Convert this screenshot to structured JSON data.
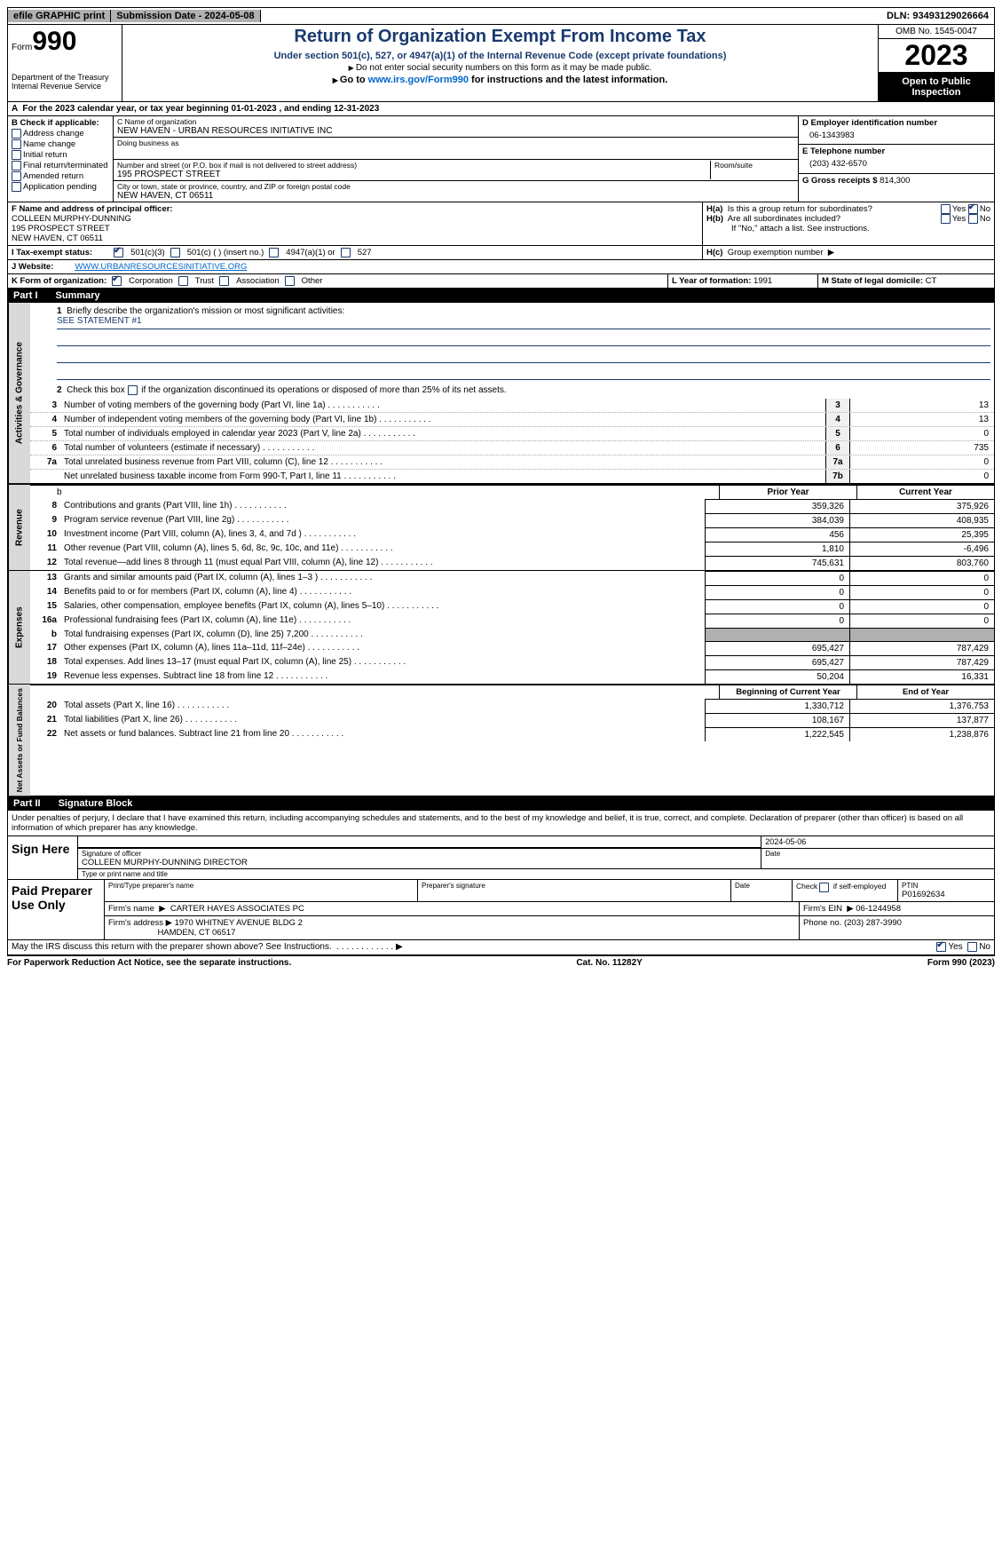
{
  "topbar": {
    "efile": "efile GRAPHIC print",
    "submission": "Submission Date - 2024-05-08",
    "dln": "DLN: 93493129026664"
  },
  "header": {
    "form_label": "Form",
    "form_number": "990",
    "dept": "Department of the Treasury",
    "irs": "Internal Revenue Service",
    "title": "Return of Organization Exempt From Income Tax",
    "subtitle": "Under section 501(c), 527, or 4947(a)(1) of the Internal Revenue Code (except private foundations)",
    "note_ssn": "Do not enter social security numbers on this form as it may be made public.",
    "goto": "Go to www.irs.gov/Form990 for instructions and the latest information.",
    "goto_url": "www.irs.gov/Form990",
    "omb": "OMB No. 1545-0047",
    "year": "2023",
    "inspect": "Open to Public Inspection"
  },
  "line_a": "For the 2023 calendar year, or tax year beginning 01-01-2023    , and ending 12-31-2023",
  "box_b": {
    "label": "B Check if applicable:",
    "opts": [
      "Address change",
      "Name change",
      "Initial return",
      "Final return/terminated",
      "Amended return",
      "Application pending"
    ]
  },
  "box_c": {
    "name_label": "C Name of organization",
    "name": "NEW HAVEN - URBAN RESOURCES INITIATIVE INC",
    "dba_label": "Doing business as",
    "street_label": "Number and street (or P.O. box if mail is not delivered to street address)",
    "room_label": "Room/suite",
    "street": "195 PROSPECT STREET",
    "city_label": "City or town, state or province, country, and ZIP or foreign postal code",
    "city": "NEW HAVEN, CT  06511"
  },
  "box_d": {
    "label": "D Employer identification number",
    "value": "06-1343983"
  },
  "box_e": {
    "label": "E Telephone number",
    "value": "(203) 432-6570"
  },
  "box_g": {
    "label": "G Gross receipts $",
    "value": "814,300"
  },
  "box_f": {
    "label": "F  Name and address of principal officer:",
    "name": "COLLEEN MURPHY-DUNNING",
    "street": "195 PROSPECT STREET",
    "city": "NEW HAVEN, CT  06511"
  },
  "box_h": {
    "ha_label": "H(a)  Is this a group return for subordinates?",
    "ha_yes": "Yes",
    "ha_no": "No",
    "hb_label": "H(b)  Are all subordinates included?",
    "hb_note": "If \"No,\" attach a list. See instructions.",
    "hc_label": "H(c)  Group exemption number"
  },
  "box_i": {
    "label": "I   Tax-exempt status:",
    "opts": [
      "501(c)(3)",
      "501(c) (  ) (insert no.)",
      "4947(a)(1) or",
      "527"
    ]
  },
  "box_j": {
    "label": "J   Website:",
    "value": "WWW.URBANRESOURCESINITIATIVE.ORG"
  },
  "box_k": {
    "label": "K Form of organization:",
    "opts": [
      "Corporation",
      "Trust",
      "Association",
      "Other"
    ],
    "l_label": "L Year of formation:",
    "l_val": "1991",
    "m_label": "M State of legal domicile:",
    "m_val": "CT"
  },
  "part1": {
    "tag": "Part I",
    "title": "Summary",
    "q1_label": "Briefly describe the organization's mission or most significant activities:",
    "q1_val": "SEE STATEMENT #1",
    "q2_label": "Check this box        if the organization discontinued its operations or disposed of more than 25% of its net assets.",
    "gov_side": "Activities & Governance",
    "rev_side": "Revenue",
    "exp_side": "Expenses",
    "na_side": "Net Assets or Fund Balances",
    "lines_gov": [
      {
        "n": "3",
        "d": "Number of voting members of the governing body (Part VI, line 1a)",
        "box": "3",
        "v": "13"
      },
      {
        "n": "4",
        "d": "Number of independent voting members of the governing body (Part VI, line 1b)",
        "box": "4",
        "v": "13"
      },
      {
        "n": "5",
        "d": "Total number of individuals employed in calendar year 2023 (Part V, line 2a)",
        "box": "5",
        "v": "0"
      },
      {
        "n": "6",
        "d": "Total number of volunteers (estimate if necessary)",
        "box": "6",
        "v": "735"
      },
      {
        "n": "7a",
        "d": "Total unrelated business revenue from Part VIII, column (C), line 12",
        "box": "7a",
        "v": "0"
      },
      {
        "n": "",
        "d": "Net unrelated business taxable income from Form 990-T, Part I, line 11",
        "box": "7b",
        "v": "0"
      }
    ],
    "prior_label": "Prior Year",
    "current_label": "Current Year",
    "lines_rev": [
      {
        "n": "8",
        "d": "Contributions and grants (Part VIII, line 1h)",
        "p": "359,326",
        "c": "375,926"
      },
      {
        "n": "9",
        "d": "Program service revenue (Part VIII, line 2g)",
        "p": "384,039",
        "c": "408,935"
      },
      {
        "n": "10",
        "d": "Investment income (Part VIII, column (A), lines 3, 4, and 7d )",
        "p": "456",
        "c": "25,395"
      },
      {
        "n": "11",
        "d": "Other revenue (Part VIII, column (A), lines 5, 6d, 8c, 9c, 10c, and 11e)",
        "p": "1,810",
        "c": "-6,496"
      },
      {
        "n": "12",
        "d": "Total revenue—add lines 8 through 11 (must equal Part VIII, column (A), line 12)",
        "p": "745,631",
        "c": "803,760"
      }
    ],
    "lines_exp": [
      {
        "n": "13",
        "d": "Grants and similar amounts paid (Part IX, column (A), lines 1–3 )",
        "p": "0",
        "c": "0"
      },
      {
        "n": "14",
        "d": "Benefits paid to or for members (Part IX, column (A), line 4)",
        "p": "0",
        "c": "0"
      },
      {
        "n": "15",
        "d": "Salaries, other compensation, employee benefits (Part IX, column (A), lines 5–10)",
        "p": "0",
        "c": "0"
      },
      {
        "n": "16a",
        "d": "Professional fundraising fees (Part IX, column (A), line 11e)",
        "p": "0",
        "c": "0"
      },
      {
        "n": "b",
        "d": "Total fundraising expenses (Part IX, column (D), line 25) 7,200",
        "p": "",
        "c": "",
        "shade": true
      },
      {
        "n": "17",
        "d": "Other expenses (Part IX, column (A), lines 11a–11d, 11f–24e)",
        "p": "695,427",
        "c": "787,429"
      },
      {
        "n": "18",
        "d": "Total expenses. Add lines 13–17 (must equal Part IX, column (A), line 25)",
        "p": "695,427",
        "c": "787,429"
      },
      {
        "n": "19",
        "d": "Revenue less expenses. Subtract line 18 from line 12",
        "p": "50,204",
        "c": "16,331"
      }
    ],
    "boy_label": "Beginning of Current Year",
    "eoy_label": "End of Year",
    "lines_na": [
      {
        "n": "20",
        "d": "Total assets (Part X, line 16)",
        "p": "1,330,712",
        "c": "1,376,753"
      },
      {
        "n": "21",
        "d": "Total liabilities (Part X, line 26)",
        "p": "108,167",
        "c": "137,877"
      },
      {
        "n": "22",
        "d": "Net assets or fund balances. Subtract line 21 from line 20",
        "p": "1,222,545",
        "c": "1,238,876"
      }
    ]
  },
  "part2": {
    "tag": "Part II",
    "title": "Signature Block",
    "perjury": "Under penalties of perjury, I declare that I have examined this return, including accompanying schedules and statements, and to the best of my knowledge and belief, it is true, correct, and complete. Declaration of preparer (other than officer) is based on all information of which preparer has any knowledge.",
    "sign_here": "Sign Here",
    "sig_officer_label": "Signature of officer",
    "sig_date_label": "Date",
    "sig_date": "2024-05-06",
    "officer_name": "COLLEEN MURPHY-DUNNING  DIRECTOR",
    "type_label": "Type or print name and title",
    "paid": "Paid Preparer Use Only",
    "pt_name_label": "Print/Type preparer's name",
    "prep_sig_label": "Preparer's signature",
    "date_label": "Date",
    "self_emp_label": "Check        if self-employed",
    "ptin_label": "PTIN",
    "ptin": "P01692634",
    "firm_name_label": "Firm's name",
    "firm_name": "CARTER HAYES ASSOCIATES PC",
    "firm_ein_label": "Firm's EIN",
    "firm_ein": "06-1244958",
    "firm_addr_label": "Firm's address",
    "firm_addr1": "1970 WHITNEY AVENUE BLDG 2",
    "firm_addr2": "HAMDEN, CT  06517",
    "phone_label": "Phone no.",
    "phone": "(203) 287-3990",
    "discuss": "May the IRS discuss this return with the preparer shown above? See Instructions.",
    "yes": "Yes",
    "no": "No"
  },
  "footer": {
    "pra": "For Paperwork Reduction Act Notice, see the separate instructions.",
    "cat": "Cat. No. 11282Y",
    "form": "Form 990 (2023)"
  }
}
